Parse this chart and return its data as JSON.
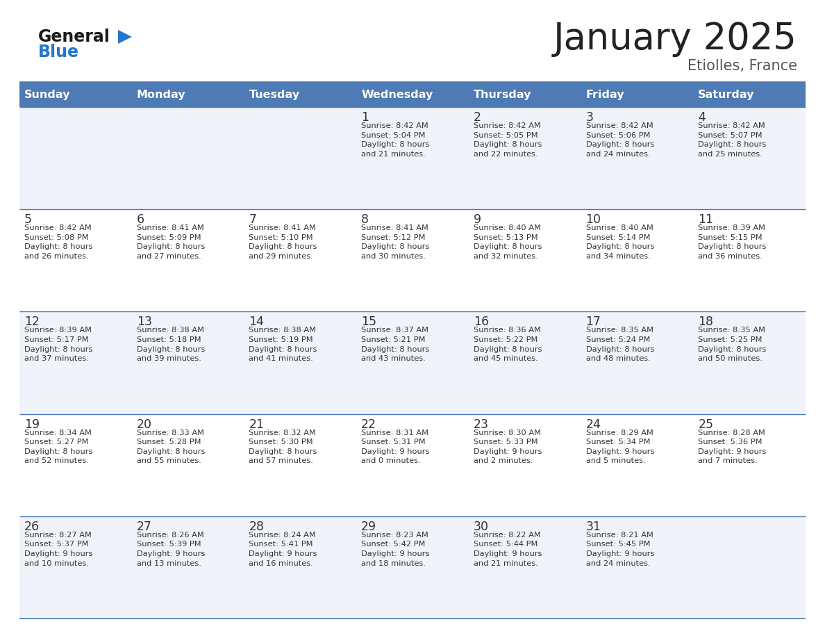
{
  "title": "January 2025",
  "subtitle": "Etiolles, France",
  "header_color": "#4E7AB5",
  "header_text_color": "#FFFFFF",
  "day_names": [
    "Sunday",
    "Monday",
    "Tuesday",
    "Wednesday",
    "Thursday",
    "Friday",
    "Saturday"
  ],
  "bg_color": "#FFFFFF",
  "cell_bg_light": "#F0F4FA",
  "cell_bg_white": "#FFFFFF",
  "border_color": "#4E7AB5",
  "text_color": "#333333",
  "logo_black": "#1A1A1A",
  "logo_blue": "#2277CC",
  "title_color": "#222222",
  "subtitle_color": "#555555",
  "calendar": [
    [
      {
        "day": "",
        "info": ""
      },
      {
        "day": "",
        "info": ""
      },
      {
        "day": "",
        "info": ""
      },
      {
        "day": "1",
        "info": "Sunrise: 8:42 AM\nSunset: 5:04 PM\nDaylight: 8 hours\nand 21 minutes."
      },
      {
        "day": "2",
        "info": "Sunrise: 8:42 AM\nSunset: 5:05 PM\nDaylight: 8 hours\nand 22 minutes."
      },
      {
        "day": "3",
        "info": "Sunrise: 8:42 AM\nSunset: 5:06 PM\nDaylight: 8 hours\nand 24 minutes."
      },
      {
        "day": "4",
        "info": "Sunrise: 8:42 AM\nSunset: 5:07 PM\nDaylight: 8 hours\nand 25 minutes."
      }
    ],
    [
      {
        "day": "5",
        "info": "Sunrise: 8:42 AM\nSunset: 5:08 PM\nDaylight: 8 hours\nand 26 minutes."
      },
      {
        "day": "6",
        "info": "Sunrise: 8:41 AM\nSunset: 5:09 PM\nDaylight: 8 hours\nand 27 minutes."
      },
      {
        "day": "7",
        "info": "Sunrise: 8:41 AM\nSunset: 5:10 PM\nDaylight: 8 hours\nand 29 minutes."
      },
      {
        "day": "8",
        "info": "Sunrise: 8:41 AM\nSunset: 5:12 PM\nDaylight: 8 hours\nand 30 minutes."
      },
      {
        "day": "9",
        "info": "Sunrise: 8:40 AM\nSunset: 5:13 PM\nDaylight: 8 hours\nand 32 minutes."
      },
      {
        "day": "10",
        "info": "Sunrise: 8:40 AM\nSunset: 5:14 PM\nDaylight: 8 hours\nand 34 minutes."
      },
      {
        "day": "11",
        "info": "Sunrise: 8:39 AM\nSunset: 5:15 PM\nDaylight: 8 hours\nand 36 minutes."
      }
    ],
    [
      {
        "day": "12",
        "info": "Sunrise: 8:39 AM\nSunset: 5:17 PM\nDaylight: 8 hours\nand 37 minutes."
      },
      {
        "day": "13",
        "info": "Sunrise: 8:38 AM\nSunset: 5:18 PM\nDaylight: 8 hours\nand 39 minutes."
      },
      {
        "day": "14",
        "info": "Sunrise: 8:38 AM\nSunset: 5:19 PM\nDaylight: 8 hours\nand 41 minutes."
      },
      {
        "day": "15",
        "info": "Sunrise: 8:37 AM\nSunset: 5:21 PM\nDaylight: 8 hours\nand 43 minutes."
      },
      {
        "day": "16",
        "info": "Sunrise: 8:36 AM\nSunset: 5:22 PM\nDaylight: 8 hours\nand 45 minutes."
      },
      {
        "day": "17",
        "info": "Sunrise: 8:35 AM\nSunset: 5:24 PM\nDaylight: 8 hours\nand 48 minutes."
      },
      {
        "day": "18",
        "info": "Sunrise: 8:35 AM\nSunset: 5:25 PM\nDaylight: 8 hours\nand 50 minutes."
      }
    ],
    [
      {
        "day": "19",
        "info": "Sunrise: 8:34 AM\nSunset: 5:27 PM\nDaylight: 8 hours\nand 52 minutes."
      },
      {
        "day": "20",
        "info": "Sunrise: 8:33 AM\nSunset: 5:28 PM\nDaylight: 8 hours\nand 55 minutes."
      },
      {
        "day": "21",
        "info": "Sunrise: 8:32 AM\nSunset: 5:30 PM\nDaylight: 8 hours\nand 57 minutes."
      },
      {
        "day": "22",
        "info": "Sunrise: 8:31 AM\nSunset: 5:31 PM\nDaylight: 9 hours\nand 0 minutes."
      },
      {
        "day": "23",
        "info": "Sunrise: 8:30 AM\nSunset: 5:33 PM\nDaylight: 9 hours\nand 2 minutes."
      },
      {
        "day": "24",
        "info": "Sunrise: 8:29 AM\nSunset: 5:34 PM\nDaylight: 9 hours\nand 5 minutes."
      },
      {
        "day": "25",
        "info": "Sunrise: 8:28 AM\nSunset: 5:36 PM\nDaylight: 9 hours\nand 7 minutes."
      }
    ],
    [
      {
        "day": "26",
        "info": "Sunrise: 8:27 AM\nSunset: 5:37 PM\nDaylight: 9 hours\nand 10 minutes."
      },
      {
        "day": "27",
        "info": "Sunrise: 8:26 AM\nSunset: 5:39 PM\nDaylight: 9 hours\nand 13 minutes."
      },
      {
        "day": "28",
        "info": "Sunrise: 8:24 AM\nSunset: 5:41 PM\nDaylight: 9 hours\nand 16 minutes."
      },
      {
        "day": "29",
        "info": "Sunrise: 8:23 AM\nSunset: 5:42 PM\nDaylight: 9 hours\nand 18 minutes."
      },
      {
        "day": "30",
        "info": "Sunrise: 8:22 AM\nSunset: 5:44 PM\nDaylight: 9 hours\nand 21 minutes."
      },
      {
        "day": "31",
        "info": "Sunrise: 8:21 AM\nSunset: 5:45 PM\nDaylight: 9 hours\nand 24 minutes."
      },
      {
        "day": "",
        "info": ""
      }
    ]
  ]
}
